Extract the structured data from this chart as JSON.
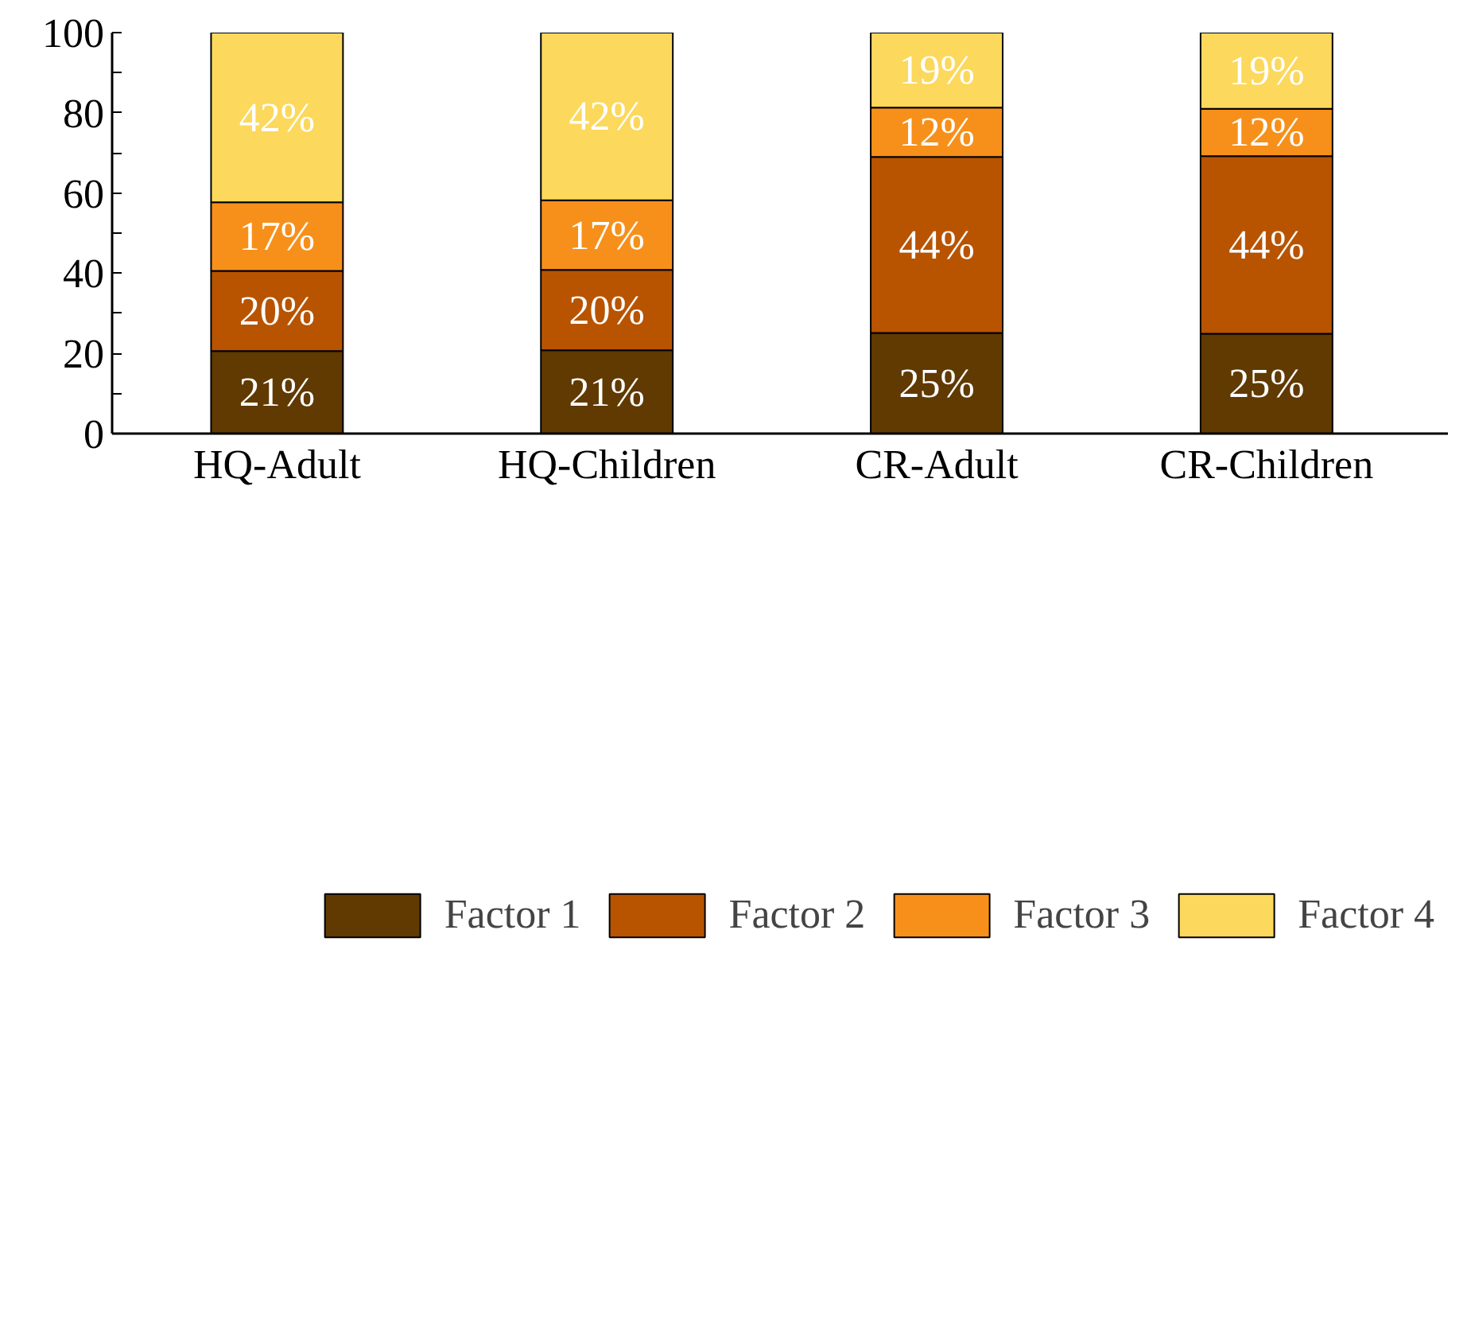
{
  "chart_data": {
    "type": "bar",
    "stacked": true,
    "categories": [
      "HQ-Adult",
      "HQ-Children",
      "CR-Adult",
      "CR-Children"
    ],
    "series": [
      {
        "name": "Factor 1",
        "color": "#603a00",
        "values": [
          20.6,
          20.8,
          25.1,
          24.9
        ],
        "value_labels": [
          "21%",
          "21%",
          "25%",
          "25%"
        ]
      },
      {
        "name": "Factor 2",
        "color": "#b85400",
        "values": [
          20.0,
          20.0,
          43.9,
          44.3
        ],
        "value_labels": [
          "20%",
          "20%",
          "44%",
          "44%"
        ]
      },
      {
        "name": "Factor 3",
        "color": "#f7901a",
        "values": [
          17.1,
          17.4,
          12.3,
          11.8
        ],
        "value_labels": [
          "17%",
          "17%",
          "12%",
          "12%"
        ]
      },
      {
        "name": "Factor 4",
        "color": "#fcd85c",
        "values": [
          42.3,
          41.8,
          18.7,
          19.0
        ],
        "value_labels": [
          "42%",
          "42%",
          "19%",
          "19%"
        ]
      }
    ],
    "ylim": [
      0,
      100
    ],
    "yticks": [
      0,
      {
        "value": 10,
        "label": null
      },
      20,
      {
        "value": 30,
        "label": null
      },
      40,
      {
        "value": 50,
        "label": null
      },
      60,
      {
        "value": 70,
        "label": null
      },
      80,
      {
        "value": 90,
        "label": null
      },
      100
    ],
    "grid": false,
    "legend": "bottom"
  }
}
